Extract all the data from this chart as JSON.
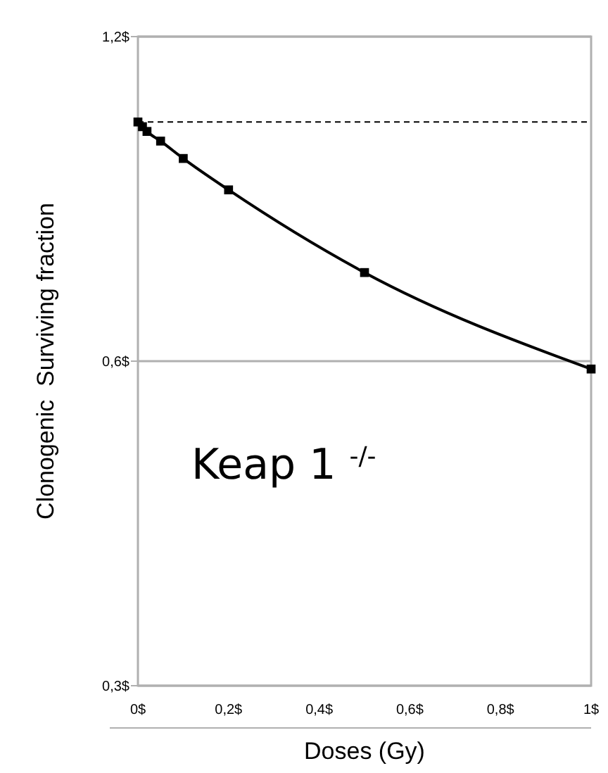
{
  "chart_data": {
    "type": "line",
    "xlabel": "Doses (Gy)",
    "ylabel": "Clonogenic  Surviving fraction",
    "x": [
      0,
      0.01,
      0.02,
      0.05,
      0.1,
      0.2,
      0.5,
      1
    ],
    "series": [
      {
        "color": "#000000",
        "values": [
          1.0,
          0.99,
          0.98,
          0.96,
          0.925,
          0.865,
          0.725,
          0.59
        ]
      }
    ],
    "xlim": [
      0,
      1
    ],
    "xticks": [
      {
        "value": 0,
        "label": "0$"
      },
      {
        "value": 0.2,
        "label": "0,2$"
      },
      {
        "value": 0.4,
        "label": "0,4$"
      },
      {
        "value": 0.6,
        "label": "0,6$"
      },
      {
        "value": 0.8,
        "label": "0,8$"
      },
      {
        "value": 1,
        "label": "1$"
      }
    ],
    "ylim": [
      0.3,
      1.2
    ],
    "yticks": [
      {
        "value": 0.3,
        "label": "0,3$"
      },
      {
        "value": 0.6,
        "label": "0,6$"
      },
      {
        "value": 1.2,
        "label": "1,2$"
      }
    ],
    "log": "y",
    "grid": "y",
    "marker": "square",
    "line_style": "solid",
    "ref_lines": [
      {
        "axis": "y",
        "value": 1,
        "color": "#000000",
        "line_style": "dashed"
      }
    ],
    "annotations": [
      "Keap 1 $^{-/-}$"
    ]
  }
}
